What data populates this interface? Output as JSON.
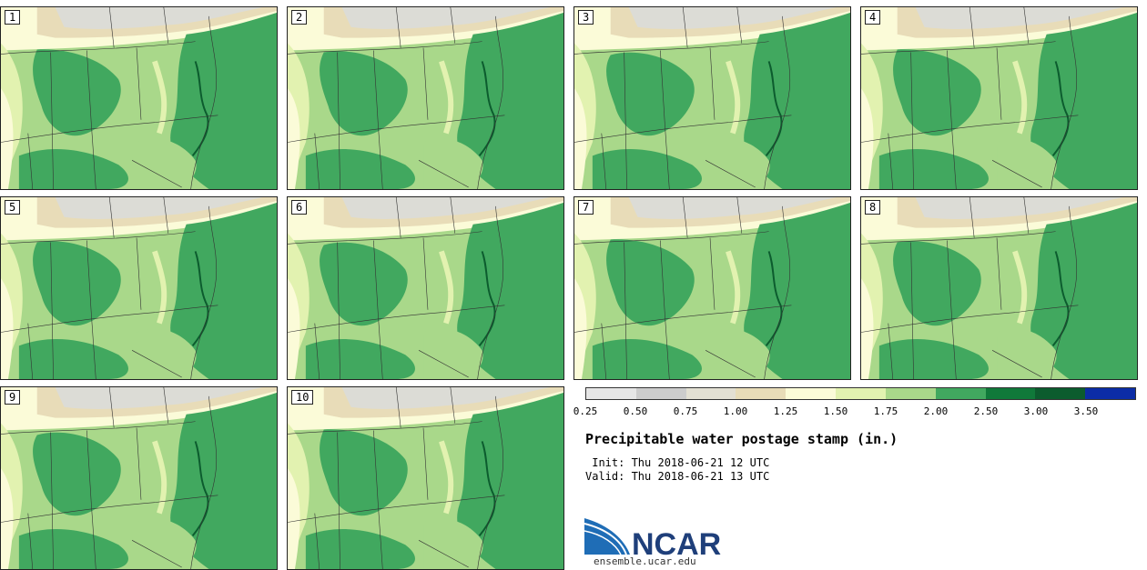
{
  "stamps": [
    {
      "label": "1"
    },
    {
      "label": "2"
    },
    {
      "label": "3"
    },
    {
      "label": "4"
    },
    {
      "label": "5"
    },
    {
      "label": "6"
    },
    {
      "label": "7"
    },
    {
      "label": "8"
    },
    {
      "label": "9"
    },
    {
      "label": "10"
    }
  ],
  "colorbar": {
    "ticks": [
      "0.25",
      "0.50",
      "0.75",
      "1.00",
      "1.25",
      "1.50",
      "1.75",
      "2.00",
      "2.50",
      "3.00",
      "3.50"
    ],
    "colors": [
      "#e6e6e6",
      "#cccccc",
      "#e3e0d3",
      "#e8dcb8",
      "#fbfbd8",
      "#e2f2b0",
      "#a9d88a",
      "#41a85f",
      "#10793a",
      "#0c5c2e",
      "#0c2ca6"
    ]
  },
  "title": "Precipitable water postage stamp (in.)",
  "init": " Init: Thu 2018-06-21 12 UTC",
  "valid": "Valid: Thu 2018-06-21 13 UTC",
  "logo_text": "NCAR",
  "url": "ensemble.ucar.edu"
}
